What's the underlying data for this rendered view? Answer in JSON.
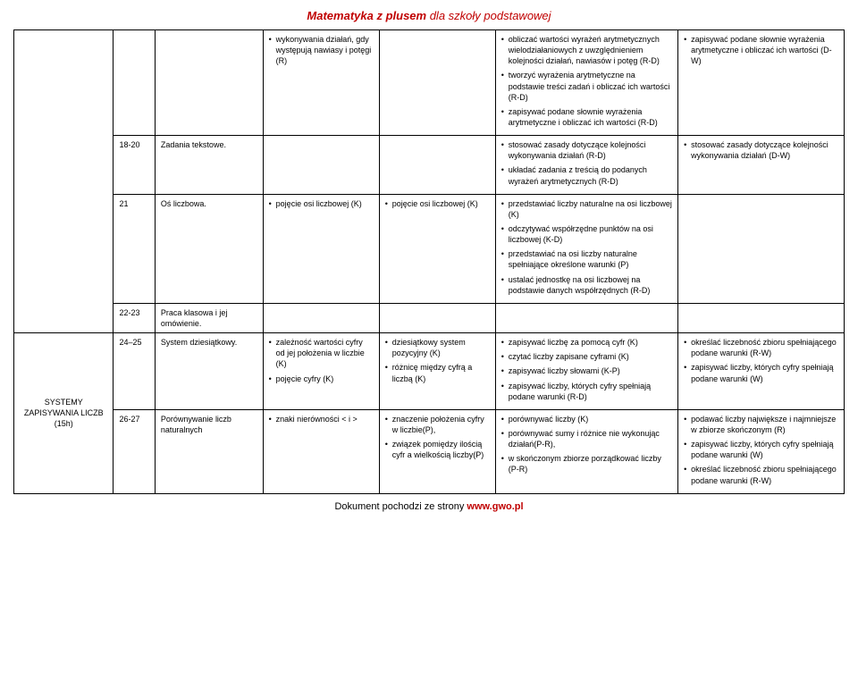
{
  "header": {
    "main": "Matematyka z plusem",
    "sub": " dla szkoły podstawowej"
  },
  "rows": [
    {
      "num": "",
      "topic": "",
      "a": [
        "wykonywania działań, gdy występują nawiasy i potęgi (R)"
      ],
      "b": [],
      "c": [
        "obliczać wartości wyrażeń arytmetycznych wielodziałaniowych z uwzględnieniem kolejności działań, nawiasów i potęg (R-D)",
        "tworzyć wyrażenia arytmetyczne na podstawie treści zadań i obliczać ich wartości (R-D)",
        "zapisywać podane słownie wyrażenia arytmetyczne i obliczać ich wartości (R-D)"
      ],
      "d": [
        "zapisywać podane słownie wyrażenia arytmetyczne i obliczać ich wartości (D-W)"
      ]
    },
    {
      "num": "18-20",
      "topic": "Zadania tekstowe.",
      "a": [],
      "b": [],
      "c": [
        "stosować zasady dotyczące kolejności wykonywania działań (R-D)",
        "układać zadania z treścią do podanych wyrażeń arytmetycznych (R-D)"
      ],
      "d": [
        "stosować zasady dotyczące kolejności wykonywania działań (D-W)"
      ]
    },
    {
      "num": "21",
      "topic": "Oś liczbowa.",
      "a": [
        "pojęcie osi liczbowej (K)"
      ],
      "b": [
        "pojęcie osi liczbowej (K)"
      ],
      "c": [
        "przedstawiać liczby naturalne na osi liczbowej (K)",
        "odczytywać współrzędne punktów na osi liczbowej (K-D)",
        "przedstawiać na osi liczby naturalne spełniające określone warunki (P)",
        "ustalać jednostkę na osi liczbowej na podstawie danych współrzędnych (R-D)"
      ],
      "d": []
    },
    {
      "num": "22-23",
      "topic": "Praca klasowa i jej omówienie.",
      "a": [],
      "b": [],
      "c": [],
      "d": []
    },
    {
      "section": "SYSTEMY ZAPISYWANIA LICZB (15h)",
      "num": "24–25",
      "topic": "System dziesiątkowy.",
      "a": [
        "zależność wartości cyfry od jej położenia w liczbie (K)",
        "pojęcie cyfry (K)"
      ],
      "b": [
        "dziesiątkowy system pozycyjny (K)",
        "różnicę między cyfrą a liczbą (K)"
      ],
      "c": [
        "zapisywać liczbę za pomocą cyfr (K)",
        "czytać liczby zapisane cyframi (K)",
        "zapisywać liczby słowami (K-P)",
        "zapisywać liczby, których cyfry spełniają podane warunki (R-D)"
      ],
      "d": [
        "określać liczebność zbioru spełniającego podane warunki (R-W)",
        "zapisywać liczby, których cyfry spełniają podane warunki (W)"
      ]
    },
    {
      "num": "26-27",
      "topic": "Porównywanie liczb naturalnych",
      "a": [
        "znaki nierówności < i >"
      ],
      "b": [
        "znaczenie położenia cyfry w liczbie(P),",
        "związek pomiędzy ilością cyfr  a wielkością liczby(P)"
      ],
      "c": [
        "porównywać liczby (K)",
        "porównywać sumy i różnice nie wykonując działań(P-R),",
        "w skończonym zbiorze porządkować liczby (P-R)"
      ],
      "d": [
        "podawać liczby największe i najmniejsze w zbiorze skończonym (R)",
        "zapisywać liczby, których cyfry spełniają podane warunki (W)",
        "określać liczebność zbioru spełniającego podane warunki (R-W)"
      ]
    }
  ],
  "footer": {
    "text": "Dokument pochodzi ze strony ",
    "url": "www.gwo.pl"
  }
}
